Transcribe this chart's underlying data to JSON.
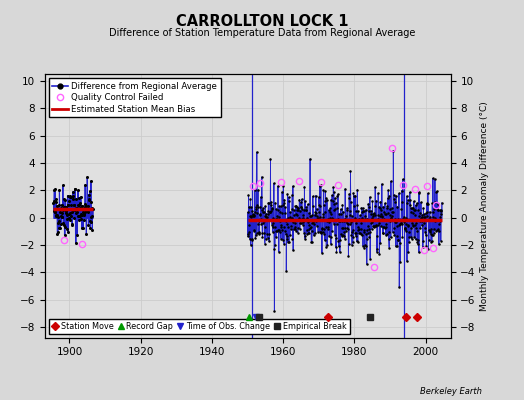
{
  "title": "CARROLLTON LOCK 1",
  "subtitle": "Difference of Station Temperature Data from Regional Average",
  "ylabel": "Monthly Temperature Anomaly Difference (°C)",
  "background_color": "#d8d8d8",
  "plot_bg_color": "#e0e0e0",
  "xlim": [
    1893,
    2007
  ],
  "ylim": [
    -8.8,
    10.5
  ],
  "yticks": [
    -8,
    -6,
    -4,
    -2,
    0,
    2,
    4,
    6,
    8,
    10
  ],
  "xticks": [
    1900,
    1920,
    1940,
    1960,
    1980,
    2000
  ],
  "seg1_x_start": 1895.5,
  "seg1_x_end": 1906.5,
  "seg1_bias": 0.6,
  "seg1_n": 132,
  "seg2_x_start": 1950.0,
  "seg2_x_end": 2004.5,
  "seg2_bias": -0.15,
  "seg2_n": 654,
  "noise1": 0.95,
  "noise2": 1.15,
  "vline1_x": 1951.2,
  "vline2_x": 1994.0,
  "vline_ymin": -8.8,
  "vline_ymax": 10.5,
  "qc_points": [
    [
      1898.5,
      -1.6
    ],
    [
      1903.5,
      -1.9
    ],
    [
      1951.5,
      2.3
    ],
    [
      1953.5,
      2.5
    ],
    [
      1959.5,
      2.6
    ],
    [
      1964.5,
      2.7
    ],
    [
      1970.5,
      2.6
    ],
    [
      1975.5,
      2.4
    ],
    [
      1990.5,
      5.1
    ],
    [
      1993.5,
      2.4
    ],
    [
      1997.0,
      2.1
    ],
    [
      1999.5,
      -2.4
    ],
    [
      2000.5,
      2.3
    ],
    [
      2003.0,
      0.9
    ],
    [
      1985.5,
      -3.6
    ],
    [
      2002.0,
      -2.2
    ]
  ],
  "marker_y": -7.3,
  "station_moves": [
    1972.5,
    1994.5,
    1997.5
  ],
  "record_gaps": [
    1950.5
  ],
  "obs_changes": [
    1952.5
  ],
  "empirical_breaks": [
    1953.2,
    1984.5
  ],
  "watermark": "Berkeley Earth",
  "line_color": "#2222cc",
  "bias_color": "#cc0000",
  "qc_color": "#ff66ff",
  "move_color": "#cc0000",
  "gap_color": "#009900",
  "obs_color": "#2222cc",
  "break_color": "#222222",
  "grid_color": "#cccccc"
}
